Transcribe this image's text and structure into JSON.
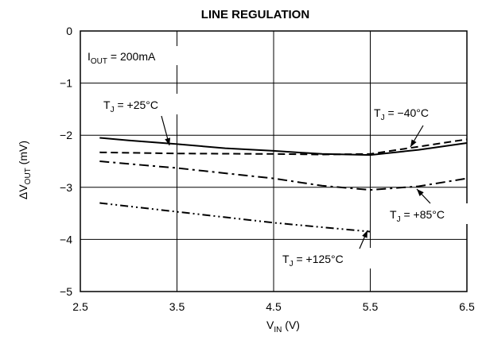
{
  "chart_data": {
    "type": "line",
    "title": "LINE REGULATION",
    "xlabel": {
      "main": "V",
      "sub": "IN",
      "unit": " (V)"
    },
    "ylabel": {
      "main": "ΔV",
      "sub": "OUT",
      "unit": " (mV)"
    },
    "xlim": [
      2.5,
      6.5
    ],
    "ylim": [
      -5,
      0
    ],
    "xticks": [
      "2.5",
      "3.5",
      "4.5",
      "5.5",
      "6.5"
    ],
    "yticks": [
      "0",
      "−1",
      "−2",
      "−3",
      "−4",
      "−5"
    ],
    "grid": true,
    "annotation_condition": {
      "main": "I",
      "sub": "OUT",
      "rest": " = 200mA"
    },
    "series": [
      {
        "name": "T_J = +25°C",
        "label": {
          "main": "T",
          "sub": "J",
          "rest": " = +25°C"
        },
        "style": "solid",
        "x": [
          2.7,
          3.0,
          3.5,
          4.0,
          4.5,
          5.0,
          5.5,
          6.0,
          6.5
        ],
        "y": [
          -2.05,
          -2.1,
          -2.17,
          -2.25,
          -2.3,
          -2.36,
          -2.38,
          -2.28,
          -2.15
        ]
      },
      {
        "name": "T_J = −40°C",
        "label": {
          "main": "T",
          "sub": "J",
          "rest": " = −40°C"
        },
        "style": "dashed",
        "x": [
          2.7,
          3.5,
          4.5,
          5.0,
          5.5,
          6.0,
          6.5
        ],
        "y": [
          -2.33,
          -2.35,
          -2.36,
          -2.37,
          -2.36,
          -2.22,
          -2.08
        ]
      },
      {
        "name": "T_J = +85°C",
        "label": {
          "main": "T",
          "sub": "J",
          "rest": " = +85°C"
        },
        "style": "dash-dot",
        "x": [
          2.7,
          3.0,
          3.5,
          4.0,
          4.5,
          5.0,
          5.5,
          6.0,
          6.5
        ],
        "y": [
          -2.5,
          -2.55,
          -2.63,
          -2.73,
          -2.83,
          -2.97,
          -3.05,
          -2.98,
          -2.83
        ]
      },
      {
        "name": "T_J = +125°C",
        "label": {
          "main": "T",
          "sub": "J",
          "rest": " = +125°C"
        },
        "style": "dash-dot-dot",
        "x": [
          2.7,
          3.5,
          4.5,
          5.5
        ],
        "y": [
          -3.3,
          -3.47,
          -3.68,
          -3.85
        ]
      }
    ]
  }
}
